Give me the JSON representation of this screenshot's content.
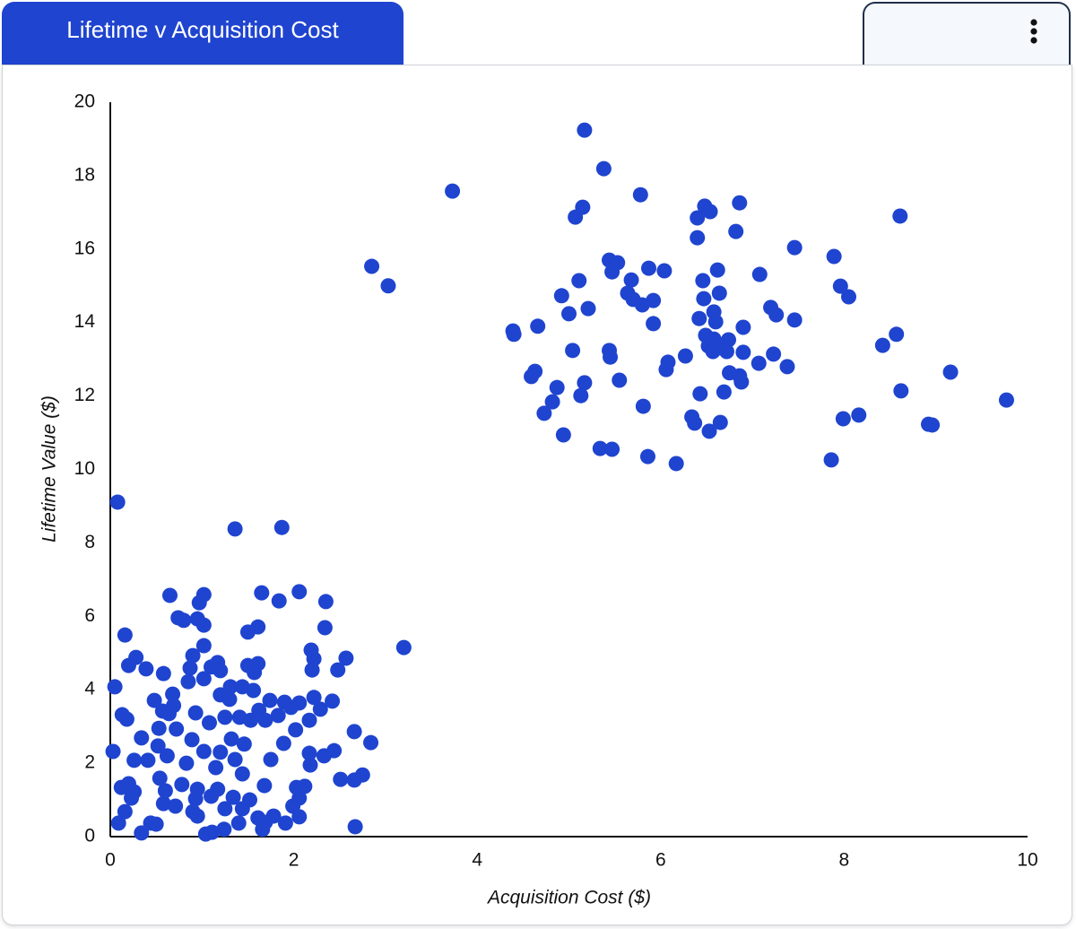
{
  "chart_data": {
    "type": "scatter",
    "title": "Lifetime v Acquisition Cost",
    "x_label": "Acquisition Cost ($)",
    "y_label": "Lifetime Value ($)",
    "color": "#1f44cf",
    "xlim": [
      0,
      10
    ],
    "ylim": [
      0,
      20
    ],
    "xticks": [
      0,
      2,
      4,
      6,
      8,
      10
    ],
    "yticks": [
      0,
      2,
      4,
      6,
      8,
      10,
      12,
      14,
      16,
      18,
      20
    ],
    "x": [
      5.17,
      5.38,
      3.73,
      5.78,
      6.86,
      6.48,
      6.54,
      5.15,
      5.07,
      6.4,
      8.61,
      6.82,
      6.4,
      7.46,
      7.89,
      2.85,
      3.03,
      5.44,
      5.53,
      5.47,
      5.87,
      6.04,
      6.62,
      7.08,
      5.11,
      5.68,
      6.46,
      7.96,
      8.05,
      6.64,
      4.92,
      5.64,
      5.7,
      5.8,
      5.92,
      6.47,
      5.21,
      5.0,
      7.2,
      7.26,
      6.58,
      6.42,
      7.46,
      4.66,
      5.92,
      6.6,
      4.39,
      4.4,
      6.9,
      6.49,
      8.57,
      6.58,
      6.74,
      6.52,
      8.42,
      6.63,
      5.04,
      5.44,
      6.57,
      6.72,
      6.9,
      5.45,
      7.23,
      6.27,
      6.08,
      7.07,
      7.38,
      6.06,
      9.16,
      4.63,
      4.59,
      6.75,
      6.86,
      6.88,
      5.55,
      5.17,
      4.87,
      6.69,
      6.43,
      8.62,
      5.13,
      9.77,
      4.82,
      5.81,
      4.73,
      8.16,
      7.99,
      6.34,
      6.65,
      6.37,
      8.92,
      8.96,
      6.53,
      4.94,
      5.34,
      5.47,
      5.86,
      6.17,
      7.86,
      0.08,
      1.36,
      1.87,
      3.2,
      0.65,
      1.02,
      1.65,
      2.06,
      2.35,
      1.84,
      0.97,
      0.74,
      0.8,
      0.95,
      1.02,
      1.61,
      1.5,
      0.16,
      2.34,
      1.02,
      2.19,
      2.22,
      2.57,
      0.9,
      0.28,
      0.2,
      0.39,
      0.58,
      0.87,
      1.1,
      1.17,
      1.2,
      1.5,
      1.61,
      1.57,
      2.2,
      2.48,
      0.85,
      1.02,
      0.05,
      1.31,
      1.44,
      1.56,
      1.2,
      0.68,
      0.48,
      0.69,
      0.57,
      0.64,
      1.3,
      1.74,
      1.9,
      2.06,
      2.22,
      2.42,
      2.29,
      1.97,
      1.62,
      1.83,
      1.69,
      1.53,
      1.41,
      1.25,
      0.93,
      1.08,
      0.13,
      0.18,
      0.53,
      0.72,
      2.17,
      2.02,
      2.66,
      2.84,
      0.34,
      0.52,
      0.89,
      1.32,
      1.46,
      1.89,
      0.03,
      0.26,
      0.41,
      0.62,
      1.02,
      1.2,
      1.36,
      1.75,
      2.17,
      2.44,
      2.33,
      0.83,
      1.15,
      1.44,
      2.18,
      2.75,
      2.51,
      2.66,
      0.54,
      0.78,
      0.12,
      0.2,
      0.26,
      0.6,
      0.95,
      1.17,
      1.68,
      2.03,
      2.12,
      0.23,
      0.93,
      1.1,
      1.34,
      1.52,
      2.06,
      0.58,
      0.71,
      0.9,
      1.25,
      1.44,
      1.99,
      0.16,
      0.95,
      1.61,
      1.78,
      2.06,
      0.09,
      0.44,
      0.5,
      1.4,
      1.69,
      1.91,
      1.24,
      1.66,
      2.67,
      0.34,
      1.04,
      1.11
    ],
    "y": [
      19.24,
      18.19,
      17.58,
      17.48,
      17.26,
      17.17,
      17.02,
      17.14,
      16.87,
      16.85,
      16.9,
      16.48,
      16.31,
      16.04,
      15.8,
      15.53,
      15.0,
      15.7,
      15.63,
      15.38,
      15.48,
      15.41,
      15.43,
      15.31,
      15.14,
      15.16,
      15.14,
      14.99,
      14.7,
      14.8,
      14.73,
      14.8,
      14.63,
      14.48,
      14.6,
      14.65,
      14.38,
      14.24,
      14.41,
      14.21,
      14.29,
      14.11,
      14.07,
      13.9,
      13.97,
      14.02,
      13.77,
      13.68,
      13.87,
      13.65,
      13.68,
      13.55,
      13.53,
      13.36,
      13.38,
      13.31,
      13.24,
      13.24,
      13.21,
      13.21,
      13.19,
      13.06,
      13.14,
      13.09,
      12.92,
      12.89,
      12.8,
      12.72,
      12.65,
      12.67,
      12.53,
      12.63,
      12.55,
      12.38,
      12.43,
      12.36,
      12.23,
      12.11,
      12.06,
      12.14,
      12.01,
      11.89,
      11.84,
      11.72,
      11.53,
      11.48,
      11.38,
      11.43,
      11.28,
      11.26,
      11.23,
      11.21,
      11.04,
      10.94,
      10.57,
      10.55,
      10.35,
      10.16,
      10.26,
      9.11,
      8.38,
      8.42,
      5.15,
      6.57,
      6.59,
      6.64,
      6.67,
      6.4,
      6.42,
      6.37,
      5.96,
      5.89,
      5.93,
      5.76,
      5.71,
      5.57,
      5.49,
      5.69,
      5.2,
      5.08,
      4.84,
      4.86,
      4.93,
      4.88,
      4.66,
      4.57,
      4.44,
      4.59,
      4.62,
      4.74,
      4.52,
      4.66,
      4.71,
      4.47,
      4.54,
      4.54,
      4.22,
      4.3,
      4.08,
      4.08,
      4.08,
      3.98,
      3.86,
      3.88,
      3.71,
      3.57,
      3.42,
      3.35,
      3.74,
      3.71,
      3.66,
      3.64,
      3.79,
      3.69,
      3.47,
      3.52,
      3.44,
      3.3,
      3.17,
      3.17,
      3.25,
      3.25,
      3.37,
      3.1,
      3.32,
      3.2,
      2.95,
      2.93,
      3.17,
      2.91,
      2.86,
      2.56,
      2.69,
      2.47,
      2.64,
      2.66,
      2.52,
      2.54,
      2.32,
      2.08,
      2.08,
      2.2,
      2.32,
      2.3,
      2.1,
      2.1,
      2.27,
      2.34,
      2.2,
      2.0,
      1.88,
      1.71,
      1.95,
      1.68,
      1.56,
      1.54,
      1.59,
      1.42,
      1.34,
      1.44,
      1.22,
      1.25,
      1.29,
      1.29,
      1.39,
      1.34,
      1.37,
      1.05,
      1.03,
      1.1,
      1.07,
      1.0,
      1.05,
      0.9,
      0.83,
      0.68,
      0.76,
      0.76,
      0.83,
      0.68,
      0.56,
      0.51,
      0.56,
      0.54,
      0.37,
      0.37,
      0.34,
      0.37,
      0.39,
      0.37,
      0.2,
      0.2,
      0.27,
      0.1,
      0.07,
      0.12
    ]
  }
}
